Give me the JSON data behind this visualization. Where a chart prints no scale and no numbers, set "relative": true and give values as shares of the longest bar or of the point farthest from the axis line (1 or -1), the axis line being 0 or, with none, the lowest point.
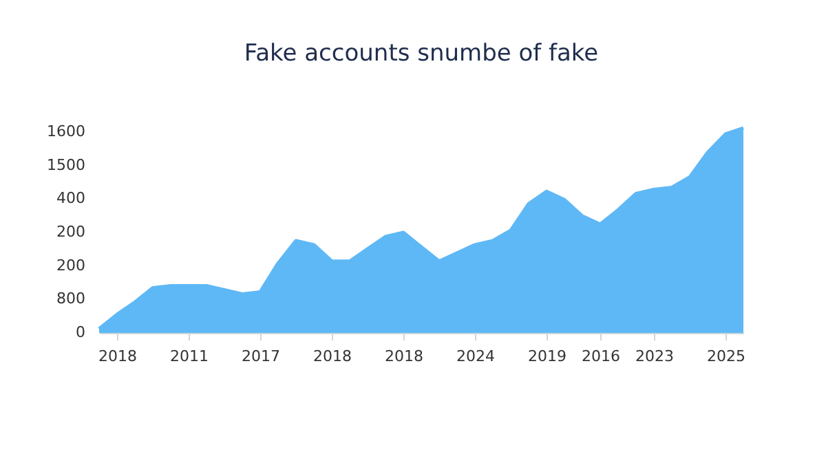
{
  "chart_data": {
    "type": "area",
    "title": "Fake accounts snumbe of fake",
    "relative": true,
    "categories": [
      null,
      "2018",
      null,
      null,
      null,
      "2011",
      null,
      null,
      null,
      "2017",
      null,
      null,
      null,
      "2018",
      null,
      null,
      null,
      "2018",
      null,
      null,
      null,
      "2024",
      null,
      null,
      null,
      "2019",
      null,
      null,
      "2016",
      null,
      null,
      "2023",
      null,
      null,
      null,
      "2025",
      null
    ],
    "series": [
      {
        "color": "#5fb8f6",
        "values": [
          0.02,
          0.09,
          0.15,
          0.22,
          0.23,
          0.23,
          0.23,
          0.21,
          0.19,
          0.2,
          0.34,
          0.45,
          0.43,
          0.35,
          0.35,
          0.41,
          0.47,
          0.49,
          0.42,
          0.35,
          0.39,
          0.43,
          0.45,
          0.5,
          0.63,
          0.69,
          0.65,
          0.57,
          0.53,
          0.6,
          0.68,
          0.7,
          0.71,
          0.76,
          0.88,
          0.97,
          1
        ]
      }
    ],
    "annotations": [
      "1600",
      "1500",
      "400",
      "200",
      "200",
      "800",
      "0"
    ]
  }
}
